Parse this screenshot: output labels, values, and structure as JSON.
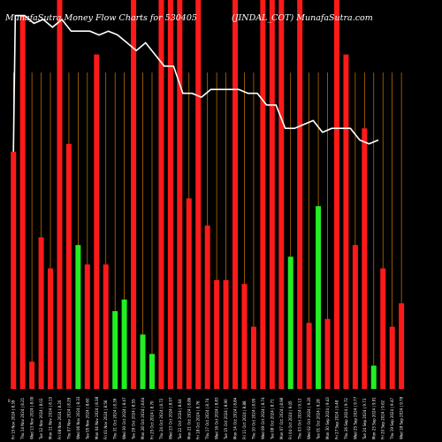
{
  "header": {
    "title": "MunafaSutra  Money Flow  Charts for 530405",
    "right": "(JINDAL_COT)  MunafaSutra.com"
  },
  "chart_data": {
    "type": "bar",
    "title": "MunafaSutra  Money Flow  Charts for 530405",
    "grid": true,
    "ylim": [
      0,
      100
    ],
    "categories": [
      "Fri 15 Nov 2024 | 8.39",
      "Thu 14 Nov 2024 | 8.21",
      "Wed 13 Nov 2024 | 8.00",
      "Tue 12 Nov 2024 | 8.02",
      "Mon 11 Nov 2024 | 8.15",
      "Fri 08 Nov 2024 | 8.20",
      "Thu 07 Nov 2024 | 8.29",
      "Wed 06 Nov 2024 | 8.33",
      "Tue 05 Nov 2024 | 8.60",
      "Mon 04 Nov 2024 | 8.38",
      "Fri 01 Nov 2024 | 8.56",
      "Thu 31 Oct 2024 | 8.39",
      "Wed 30 Oct 2024 | 8.47",
      "Tue 29 Oct 2024 | 8.55",
      "Mon 28 Oct 2024 | 8.64",
      "Fri 25 Oct 2024 | 8.70",
      "Thu 24 Oct 2024 | 8.72",
      "Wed 23 Oct 2024 | 8.97",
      "Tue 22 Oct 2024 | 8.64",
      "Mon 21 Oct 2024 | 8.86",
      "Fri 18 Oct 2024 | 8.76",
      "Thu 17 Oct 2024 | 8.74",
      "Wed 16 Oct 2024 | 8.83",
      "Tue 15 Oct 2024 | 8.90",
      "Mon 14 Oct 2024 | 8.84",
      "Fri 11 Oct 2024 | 8.88",
      "Thu 10 Oct 2024 | 8.95",
      "Wed 09 Oct 2024 | 8.74",
      "Tue 08 Oct 2024 | 8.71",
      "Mon 07 Oct 2024 | 8.98",
      "Fri 04 Oct 2024 | 9.05",
      "Thu 03 Oct 2024 | 9.13",
      "Wed 02 Oct 2024 | 9.20",
      "Tue 01 Oct 2024 | 9.28",
      "Mon 30 Sep 2024 | 9.43",
      "Fri 27 Sep 2024 | 9.48",
      "Thu 26 Sep 2024 | 9.72",
      "Wed 25 Sep 2024 | 9.77",
      "Tue 24 Sep 2024 | 9.73",
      "Mon 23 Sep 2024 | 9.91",
      "Fri 20 Sep 2024 | 9.62",
      "Thu 19 Sep 2024 | 9.47",
      "Wed 18 Sep 2024 | 9.78"
    ],
    "bars": [
      {
        "color": "red",
        "value": 61
      },
      {
        "color": "red",
        "value": 96
      },
      {
        "color": "red",
        "value": 7
      },
      {
        "color": "red",
        "value": 39
      },
      {
        "color": "red",
        "value": 31
      },
      {
        "color": "red",
        "value": 100
      },
      {
        "color": "red",
        "value": 63
      },
      {
        "color": "green",
        "value": 37
      },
      {
        "color": "red",
        "value": 32
      },
      {
        "color": "red",
        "value": 86
      },
      {
        "color": "red",
        "value": 32
      },
      {
        "color": "green",
        "value": 20
      },
      {
        "color": "green",
        "value": 23
      },
      {
        "color": "red",
        "value": 100
      },
      {
        "color": "green",
        "value": 14
      },
      {
        "color": "green",
        "value": 9
      },
      {
        "color": "red",
        "value": 100
      },
      {
        "color": "red",
        "value": 100
      },
      {
        "color": "red",
        "value": 100
      },
      {
        "color": "red",
        "value": 49
      },
      {
        "color": "red",
        "value": 100
      },
      {
        "color": "red",
        "value": 42
      },
      {
        "color": "red",
        "value": 28
      },
      {
        "color": "red",
        "value": 28
      },
      {
        "color": "red",
        "value": 100
      },
      {
        "color": "red",
        "value": 27
      },
      {
        "color": "red",
        "value": 16
      },
      {
        "color": "red",
        "value": 100
      },
      {
        "color": "red",
        "value": 100
      },
      {
        "color": "red",
        "value": 100
      },
      {
        "color": "green",
        "value": 34
      },
      {
        "color": "red",
        "value": 100
      },
      {
        "color": "red",
        "value": 17
      },
      {
        "color": "green",
        "value": 47
      },
      {
        "color": "red",
        "value": 18
      },
      {
        "color": "red",
        "value": 100
      },
      {
        "color": "red",
        "value": 86
      },
      {
        "color": "red",
        "value": 37
      },
      {
        "color": "red",
        "value": 67
      },
      {
        "color": "green",
        "value": 6
      },
      {
        "color": "red",
        "value": 31
      },
      {
        "color": "red",
        "value": 16
      },
      {
        "color": "red",
        "value": 22
      }
    ],
    "line": [
      96,
      96,
      94,
      95,
      93,
      95,
      92,
      92,
      92,
      91,
      92,
      91,
      89,
      87,
      89,
      86,
      83,
      83,
      76,
      76,
      75,
      77,
      77,
      77,
      77,
      76,
      76,
      73,
      73,
      67,
      67,
      68,
      69,
      66,
      67,
      67,
      67,
      64,
      63,
      64
    ]
  }
}
